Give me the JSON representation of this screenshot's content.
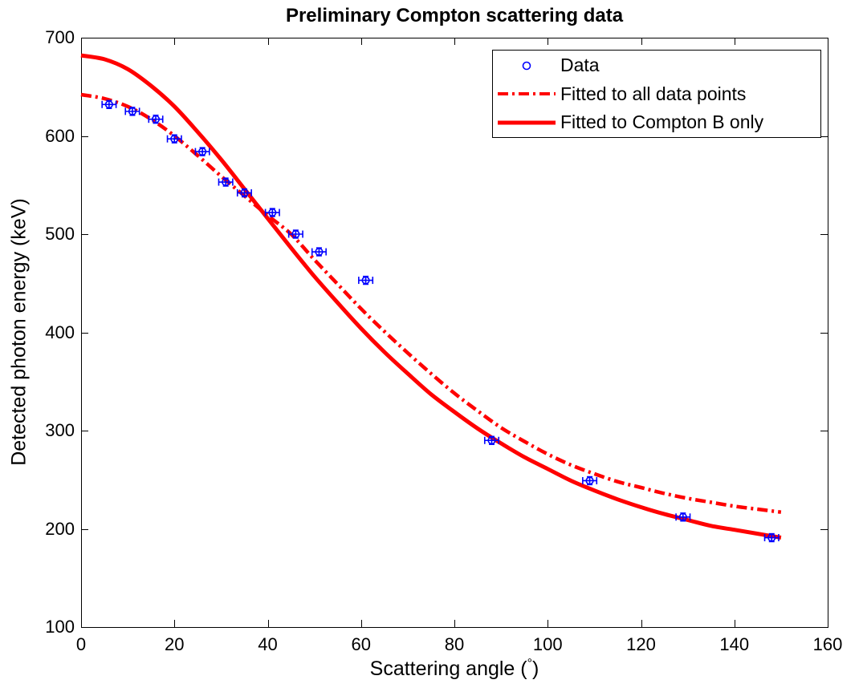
{
  "chart_data": {
    "type": "scatter",
    "title": "Preliminary Compton scattering data",
    "xlabel": "Scattering angle (°)",
    "xlabel_parts": {
      "main": "Scattering angle (",
      "degree": "°",
      "close": ")"
    },
    "ylabel": "Detected photon energy (keV)",
    "xlim": [
      0,
      160
    ],
    "ylim": [
      100,
      700
    ],
    "xticks": [
      0,
      20,
      40,
      60,
      80,
      100,
      120,
      140,
      160
    ],
    "yticks": [
      100,
      200,
      300,
      400,
      500,
      600,
      700
    ],
    "grid": false,
    "legend": {
      "position": "top-right"
    },
    "colors": {
      "data": "#0000ff",
      "fit": "#ff0000",
      "axis": "#000000",
      "background": "#ffffff"
    },
    "series": [
      {
        "name": "Data",
        "type": "scatter",
        "marker": "open-circle",
        "color": "#0000ff",
        "x": [
          6,
          11,
          16,
          20,
          26,
          31,
          35,
          41,
          46,
          51,
          61,
          88,
          109,
          129,
          148
        ],
        "y": [
          632,
          625,
          617,
          597,
          584,
          553,
          542,
          522,
          500,
          482,
          453,
          290,
          249,
          212,
          191
        ],
        "xerr": 1.5,
        "yerr": 4
      },
      {
        "name": "Fitted to all data points",
        "type": "line",
        "style": "dash-dot",
        "color": "#ff0000",
        "x": [
          0,
          5,
          10,
          15,
          20,
          25,
          30,
          35,
          40,
          45,
          50,
          55,
          60,
          65,
          70,
          75,
          80,
          85,
          90,
          95,
          100,
          105,
          110,
          115,
          120,
          125,
          130,
          135,
          140,
          145,
          150
        ],
        "y": [
          642,
          638,
          630,
          617,
          600,
          580,
          559,
          539,
          519,
          500,
          474,
          449,
          424,
          401,
          379,
          358,
          338,
          320,
          303,
          289,
          276,
          265,
          256,
          248,
          242,
          236,
          231,
          227,
          223,
          220,
          217
        ]
      },
      {
        "name": "Fitted to Compton B only",
        "type": "line",
        "style": "solid",
        "color": "#ff0000",
        "x": [
          0,
          5,
          10,
          15,
          20,
          25,
          30,
          35,
          40,
          45,
          50,
          55,
          60,
          65,
          70,
          75,
          80,
          85,
          90,
          95,
          100,
          105,
          110,
          115,
          120,
          125,
          130,
          135,
          140,
          145,
          150
        ],
        "y": [
          682,
          678,
          668,
          651,
          630,
          604,
          576,
          546,
          516,
          486,
          457,
          430,
          404,
          380,
          358,
          337,
          319,
          302,
          287,
          273,
          261,
          249,
          239,
          230,
          222,
          215,
          209,
          203,
          199,
          195,
          191
        ]
      }
    ]
  }
}
